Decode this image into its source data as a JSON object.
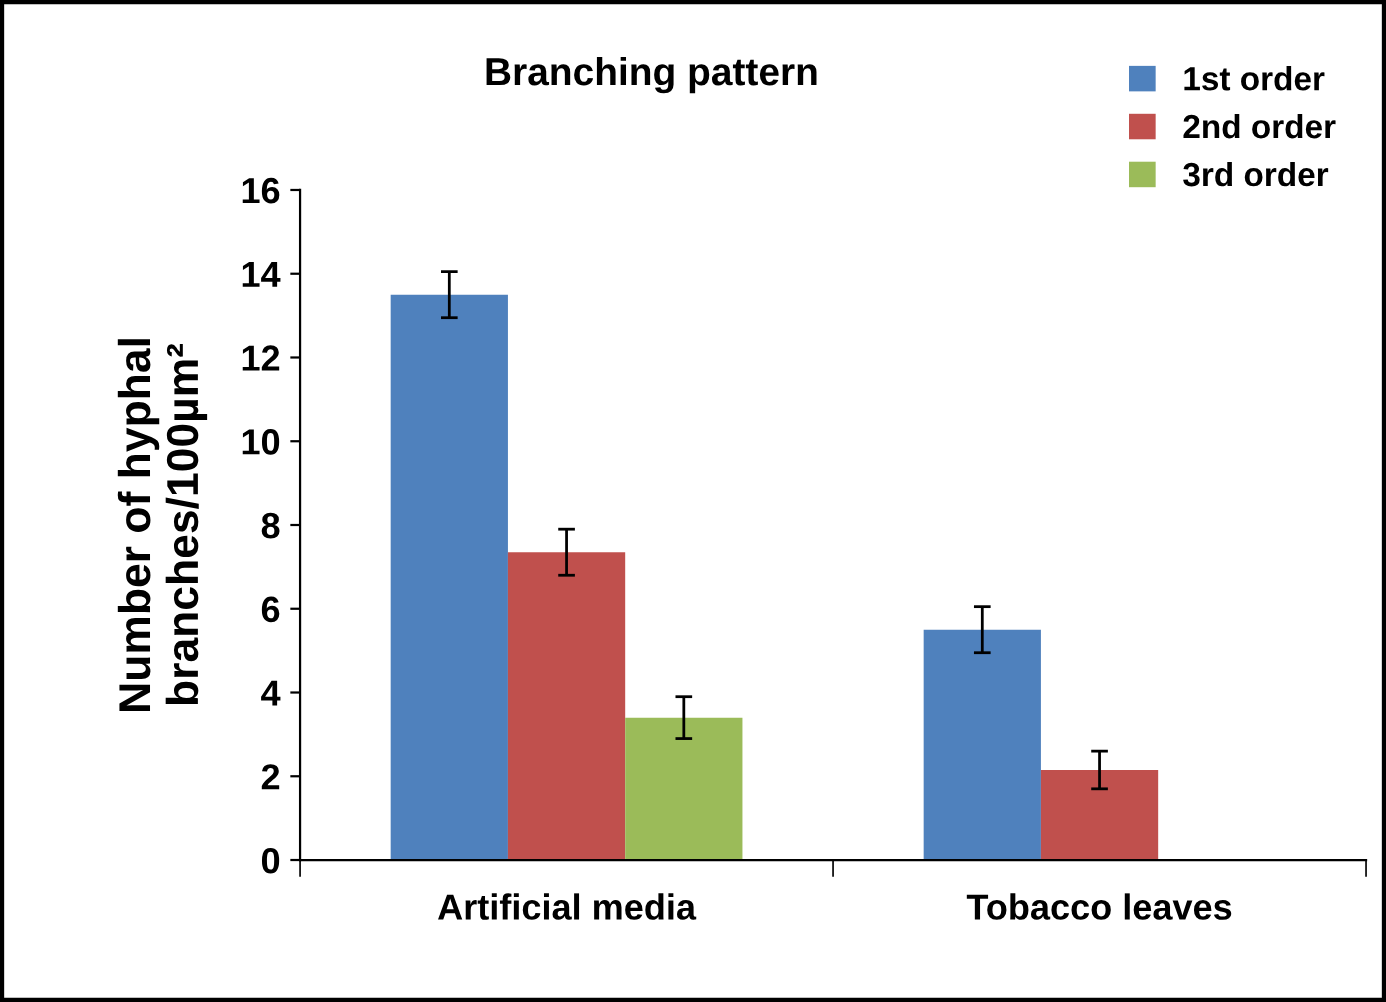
{
  "chart_data": {
    "type": "bar",
    "title": "Branching pattern",
    "ylabel": "Number of hyphal\nbranches/100µm²",
    "categories": [
      "Artificial media",
      "Tobacco leaves"
    ],
    "series": [
      {
        "name": "1st order",
        "color": "#4f81bd",
        "values": [
          13.5,
          5.5
        ],
        "errors": [
          0.55,
          0.55
        ]
      },
      {
        "name": "2nd order",
        "color": "#c0504d",
        "values": [
          7.35,
          2.15
        ],
        "errors": [
          0.55,
          0.45
        ]
      },
      {
        "name": "3rd order",
        "color": "#9bbb59",
        "values": [
          3.4,
          null
        ],
        "errors": [
          0.5,
          null
        ]
      }
    ],
    "ylim": [
      0,
      16
    ],
    "yticks": [
      0,
      2,
      4,
      6,
      8,
      10,
      12,
      14,
      16
    ],
    "grid": false,
    "legend": "top right"
  }
}
